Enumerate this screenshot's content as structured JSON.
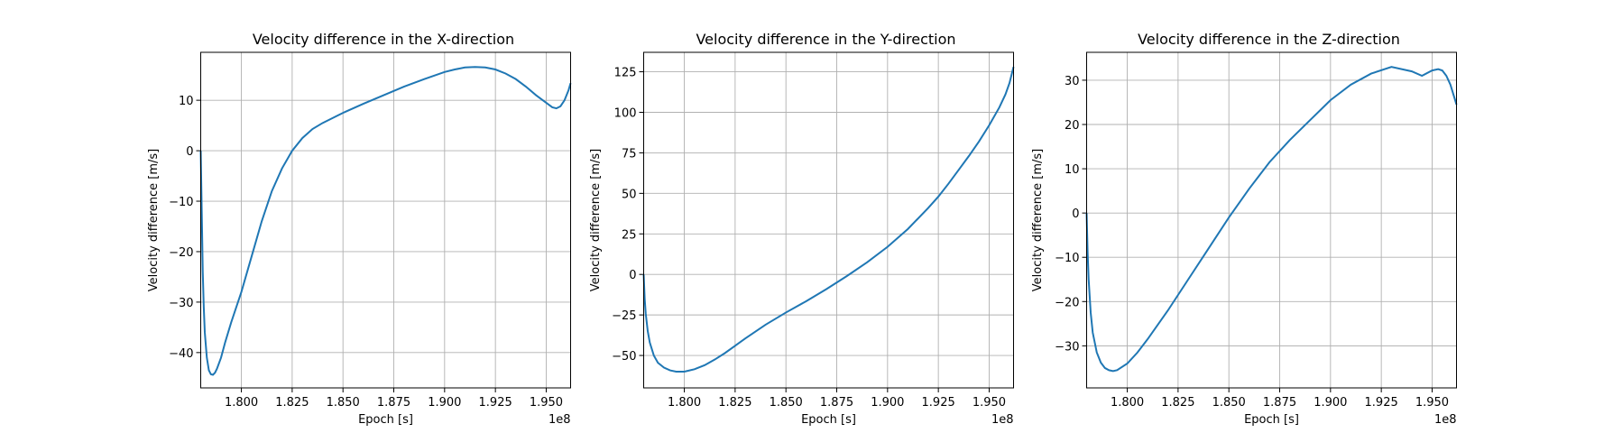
{
  "chart_data": [
    {
      "type": "line",
      "title": "Velocity difference in the X-direction",
      "xlabel": "Epoch [s]",
      "ylabel": "Velocity difference [m/s]",
      "x_offset_label": "1e8",
      "xlim": [
        1.78,
        1.962
      ],
      "ylim": [
        -47,
        19.5
      ],
      "grid": true,
      "x_ticks": [
        1.8,
        1.825,
        1.85,
        1.875,
        1.9,
        1.925,
        1.95
      ],
      "x_tick_labels": [
        "1.800",
        "1.825",
        "1.850",
        "1.875",
        "1.900",
        "1.925",
        "1.950"
      ],
      "y_ticks": [
        -40,
        -30,
        -20,
        -10,
        0,
        10
      ],
      "y_tick_labels": [
        "−40",
        "−30",
        "−20",
        "−10",
        "0",
        "10"
      ],
      "series": [
        {
          "color": "#1f77b4",
          "x": [
            1.78,
            1.7805,
            1.781,
            1.7815,
            1.782,
            1.783,
            1.784,
            1.785,
            1.786,
            1.787,
            1.788,
            1.79,
            1.792,
            1.795,
            1.8,
            1.805,
            1.81,
            1.815,
            1.82,
            1.825,
            1.83,
            1.835,
            1.84,
            1.845,
            1.85,
            1.86,
            1.87,
            1.88,
            1.89,
            1.9,
            1.905,
            1.91,
            1.915,
            1.92,
            1.925,
            1.93,
            1.935,
            1.94,
            1.945,
            1.95,
            1.953,
            1.955,
            1.957,
            1.959,
            1.961,
            1.962
          ],
          "y": [
            0,
            -12,
            -24,
            -31,
            -36,
            -41,
            -43.5,
            -44.3,
            -44.4,
            -44,
            -43.2,
            -41,
            -38,
            -34,
            -28,
            -21,
            -14,
            -8,
            -3.5,
            0,
            2.5,
            4.3,
            5.5,
            6.5,
            7.5,
            9.3,
            11,
            12.7,
            14.2,
            15.6,
            16.1,
            16.5,
            16.6,
            16.5,
            16.1,
            15.3,
            14.2,
            12.7,
            11,
            9.5,
            8.6,
            8.4,
            8.8,
            10,
            12,
            13.4
          ]
        }
      ]
    },
    {
      "type": "line",
      "title": "Velocity difference in the Y-direction",
      "xlabel": "Epoch [s]",
      "ylabel": "Velocity difference [m/s]",
      "x_offset_label": "1e8",
      "xlim": [
        1.78,
        1.962
      ],
      "ylim": [
        -70,
        137
      ],
      "grid": true,
      "x_ticks": [
        1.8,
        1.825,
        1.85,
        1.875,
        1.9,
        1.925,
        1.95
      ],
      "x_tick_labels": [
        "1.800",
        "1.825",
        "1.850",
        "1.875",
        "1.900",
        "1.925",
        "1.950"
      ],
      "y_ticks": [
        -50,
        -25,
        0,
        25,
        50,
        75,
        100,
        125
      ],
      "y_tick_labels": [
        "−50",
        "−25",
        "0",
        "25",
        "50",
        "75",
        "100",
        "125"
      ],
      "series": [
        {
          "color": "#1f77b4",
          "x": [
            1.78,
            1.7805,
            1.781,
            1.782,
            1.783,
            1.785,
            1.787,
            1.79,
            1.793,
            1.796,
            1.8,
            1.805,
            1.81,
            1.815,
            1.82,
            1.825,
            1.83,
            1.84,
            1.85,
            1.86,
            1.87,
            1.88,
            1.89,
            1.9,
            1.91,
            1.92,
            1.925,
            1.93,
            1.935,
            1.94,
            1.945,
            1.95,
            1.955,
            1.958,
            1.96,
            1.962
          ],
          "y": [
            0,
            -15,
            -24,
            -35,
            -42,
            -50,
            -54.5,
            -57.5,
            -59.2,
            -60,
            -60,
            -58.5,
            -56,
            -52.5,
            -48.5,
            -44,
            -39.5,
            -31,
            -23.5,
            -16.5,
            -9,
            -1,
            7.5,
            17,
            28,
            41,
            48,
            56,
            64.5,
            73,
            82,
            92,
            103,
            111,
            118,
            128
          ]
        }
      ]
    },
    {
      "type": "line",
      "title": "Velocity difference in the Z-direction",
      "xlabel": "Epoch [s]",
      "ylabel": "Velocity difference [m/s]",
      "x_offset_label": "1e8",
      "xlim": [
        1.78,
        1.962
      ],
      "ylim": [
        -39.5,
        36.3
      ],
      "grid": true,
      "x_ticks": [
        1.8,
        1.825,
        1.85,
        1.875,
        1.9,
        1.925,
        1.95
      ],
      "x_tick_labels": [
        "1.800",
        "1.825",
        "1.850",
        "1.875",
        "1.900",
        "1.925",
        "1.950"
      ],
      "y_ticks": [
        -30,
        -20,
        -10,
        0,
        10,
        20,
        30
      ],
      "y_tick_labels": [
        "−30",
        "−20",
        "−10",
        "0",
        "10",
        "20",
        "30"
      ],
      "series": [
        {
          "color": "#1f77b4",
          "x": [
            1.78,
            1.7805,
            1.781,
            1.782,
            1.783,
            1.785,
            1.787,
            1.789,
            1.791,
            1.793,
            1.795,
            1.8,
            1.805,
            1.81,
            1.82,
            1.83,
            1.84,
            1.85,
            1.86,
            1.87,
            1.88,
            1.89,
            1.9,
            1.91,
            1.92,
            1.93,
            1.94,
            1.945,
            1.95,
            1.953,
            1.955,
            1.957,
            1.959,
            1.961,
            1.962
          ],
          "y": [
            0,
            -9,
            -15,
            -22.5,
            -27,
            -31.5,
            -33.8,
            -35,
            -35.5,
            -35.7,
            -35.5,
            -34,
            -31.5,
            -28.5,
            -22,
            -15,
            -8,
            -1,
            5.5,
            11.5,
            16.5,
            21,
            25.5,
            29,
            31.5,
            33,
            32,
            31,
            32.2,
            32.5,
            32.2,
            31,
            29,
            26,
            24.5
          ]
        }
      ]
    }
  ]
}
